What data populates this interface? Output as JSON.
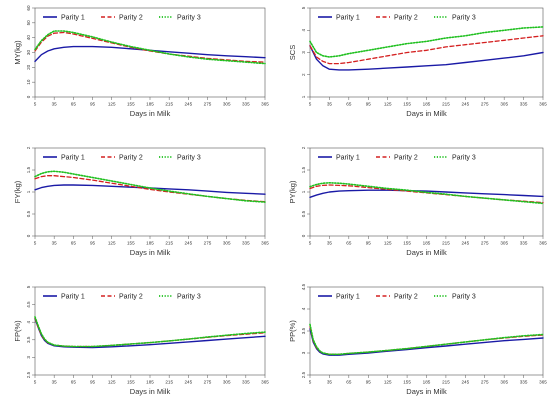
{
  "figure": {
    "x_label": "Days in Milk"
  },
  "legend": {
    "entries": [
      "Parity 1",
      "Parity 2",
      "Parity 3"
    ],
    "colors": [
      "#1a1aa6",
      "#d42020",
      "#20c020"
    ],
    "styles": [
      "solid",
      "dashed",
      "dotted"
    ]
  },
  "chart_data": [
    {
      "type": "line",
      "ylabel": "MY(kg)",
      "xlabel": "Days in Milk",
      "xlim": [
        5,
        365
      ],
      "ylim": [
        0,
        60
      ],
      "yticks": [
        0,
        10,
        20,
        30,
        40,
        50,
        60
      ],
      "xticks": [
        5,
        35,
        65,
        95,
        125,
        155,
        185,
        215,
        245,
        275,
        305,
        335,
        365
      ],
      "legend": "top-left",
      "series": [
        {
          "name": "Parity 1",
          "x": [
            5,
            15,
            25,
            35,
            50,
            65,
            95,
            125,
            155,
            185,
            215,
            245,
            275,
            305,
            335,
            365
          ],
          "y": [
            24,
            28.5,
            31,
            32.5,
            33.5,
            34,
            34,
            33.5,
            32.5,
            31.5,
            30.5,
            29.5,
            28.5,
            27.8,
            27.2,
            26.5
          ]
        },
        {
          "name": "Parity 2",
          "x": [
            5,
            15,
            25,
            35,
            50,
            65,
            95,
            125,
            155,
            185,
            215,
            245,
            275,
            305,
            335,
            365
          ],
          "y": [
            31,
            37,
            41,
            43,
            43.5,
            42.5,
            39.5,
            36.5,
            33.5,
            31,
            29,
            27.5,
            26,
            25,
            24,
            23.5
          ]
        },
        {
          "name": "Parity 3",
          "x": [
            5,
            15,
            25,
            35,
            50,
            65,
            95,
            125,
            155,
            185,
            215,
            245,
            275,
            305,
            335,
            365
          ],
          "y": [
            32,
            38,
            42,
            44.5,
            44.5,
            43.5,
            40.5,
            37,
            34,
            31.5,
            29,
            27,
            25.5,
            24.5,
            23.5,
            22.5
          ]
        }
      ]
    },
    {
      "type": "line",
      "ylabel": "SCS",
      "xlabel": "Days in Milk",
      "xlim": [
        5,
        365
      ],
      "ylim": [
        1,
        5
      ],
      "yticks": [
        1,
        2,
        3,
        4,
        5
      ],
      "xticks": [
        5,
        35,
        65,
        95,
        125,
        155,
        185,
        215,
        245,
        275,
        305,
        335,
        365
      ],
      "legend": "top-left",
      "series": [
        {
          "name": "Parity 1",
          "x": [
            5,
            15,
            25,
            35,
            50,
            65,
            95,
            125,
            155,
            185,
            215,
            245,
            275,
            305,
            335,
            365
          ],
          "y": [
            3.3,
            2.7,
            2.4,
            2.25,
            2.22,
            2.22,
            2.25,
            2.3,
            2.35,
            2.4,
            2.45,
            2.55,
            2.65,
            2.75,
            2.85,
            3.0
          ]
        },
        {
          "name": "Parity 2",
          "x": [
            5,
            15,
            25,
            35,
            50,
            65,
            95,
            125,
            155,
            185,
            215,
            245,
            275,
            305,
            335,
            365
          ],
          "y": [
            3.3,
            2.8,
            2.6,
            2.5,
            2.5,
            2.55,
            2.7,
            2.85,
            3.0,
            3.1,
            3.25,
            3.35,
            3.45,
            3.55,
            3.65,
            3.75
          ]
        },
        {
          "name": "Parity 3",
          "x": [
            5,
            15,
            25,
            35,
            50,
            65,
            95,
            125,
            155,
            185,
            215,
            245,
            275,
            305,
            335,
            365
          ],
          "y": [
            3.5,
            3.0,
            2.85,
            2.8,
            2.85,
            2.95,
            3.1,
            3.25,
            3.4,
            3.5,
            3.65,
            3.75,
            3.9,
            4.0,
            4.1,
            4.15
          ]
        }
      ]
    },
    {
      "type": "line",
      "ylabel": "FY(kg)",
      "xlabel": "Days in Milk",
      "xlim": [
        5,
        365
      ],
      "ylim": [
        0,
        2.0
      ],
      "yticks": [
        0,
        0.5,
        1.0,
        1.5,
        2.0
      ],
      "xticks": [
        5,
        35,
        65,
        95,
        125,
        155,
        185,
        215,
        245,
        275,
        305,
        335,
        365
      ],
      "legend": "top-left",
      "series": [
        {
          "name": "Parity 1",
          "x": [
            5,
            15,
            25,
            35,
            50,
            65,
            95,
            125,
            155,
            185,
            215,
            245,
            275,
            305,
            335,
            365
          ],
          "y": [
            1.05,
            1.1,
            1.13,
            1.15,
            1.16,
            1.16,
            1.15,
            1.13,
            1.11,
            1.09,
            1.07,
            1.05,
            1.02,
            0.99,
            0.97,
            0.95
          ]
        },
        {
          "name": "Parity 2",
          "x": [
            5,
            15,
            25,
            35,
            50,
            65,
            95,
            125,
            155,
            185,
            215,
            245,
            275,
            305,
            335,
            365
          ],
          "y": [
            1.3,
            1.35,
            1.37,
            1.37,
            1.35,
            1.33,
            1.27,
            1.2,
            1.13,
            1.06,
            1.0,
            0.95,
            0.9,
            0.85,
            0.81,
            0.78
          ]
        },
        {
          "name": "Parity 3",
          "x": [
            5,
            15,
            25,
            35,
            50,
            65,
            95,
            125,
            155,
            185,
            215,
            245,
            275,
            305,
            335,
            365
          ],
          "y": [
            1.35,
            1.42,
            1.46,
            1.47,
            1.45,
            1.41,
            1.33,
            1.25,
            1.17,
            1.09,
            1.02,
            0.96,
            0.9,
            0.85,
            0.8,
            0.77
          ]
        }
      ]
    },
    {
      "type": "line",
      "ylabel": "PY(kg)",
      "xlabel": "Days in Milk",
      "xlim": [
        5,
        365
      ],
      "ylim": [
        0,
        2.0
      ],
      "yticks": [
        0,
        0.5,
        1.0,
        1.5,
        2.0
      ],
      "xticks": [
        5,
        35,
        65,
        95,
        125,
        155,
        185,
        215,
        245,
        275,
        305,
        335,
        365
      ],
      "legend": "top-left",
      "series": [
        {
          "name": "Parity 1",
          "x": [
            5,
            15,
            25,
            35,
            50,
            65,
            95,
            125,
            155,
            185,
            215,
            245,
            275,
            305,
            335,
            365
          ],
          "y": [
            0.88,
            0.93,
            0.97,
            1.0,
            1.02,
            1.03,
            1.04,
            1.04,
            1.03,
            1.02,
            1.0,
            0.98,
            0.96,
            0.94,
            0.92,
            0.9
          ]
        },
        {
          "name": "Parity 2",
          "x": [
            5,
            15,
            25,
            35,
            50,
            65,
            95,
            125,
            155,
            185,
            215,
            245,
            275,
            305,
            335,
            365
          ],
          "y": [
            1.08,
            1.13,
            1.15,
            1.16,
            1.15,
            1.14,
            1.1,
            1.06,
            1.02,
            0.98,
            0.94,
            0.9,
            0.86,
            0.82,
            0.79,
            0.76
          ]
        },
        {
          "name": "Parity 3",
          "x": [
            5,
            15,
            25,
            35,
            50,
            65,
            95,
            125,
            155,
            185,
            215,
            245,
            275,
            305,
            335,
            365
          ],
          "y": [
            1.12,
            1.17,
            1.2,
            1.21,
            1.2,
            1.18,
            1.13,
            1.08,
            1.04,
            0.99,
            0.95,
            0.9,
            0.86,
            0.82,
            0.78,
            0.74
          ]
        }
      ]
    },
    {
      "type": "line",
      "ylabel": "FP(%)",
      "xlabel": "Days in Milk",
      "xlim": [
        5,
        365
      ],
      "ylim": [
        2.5,
        5.0
      ],
      "yticks": [
        2.5,
        3.0,
        3.5,
        4.0,
        4.5,
        5.0
      ],
      "xticks": [
        5,
        35,
        65,
        95,
        125,
        155,
        185,
        215,
        245,
        275,
        305,
        335,
        365
      ],
      "legend": "top-left",
      "series": [
        {
          "name": "Parity 1",
          "x": [
            5,
            10,
            15,
            20,
            25,
            35,
            50,
            65,
            95,
            125,
            155,
            185,
            215,
            245,
            275,
            305,
            335,
            365
          ],
          "y": [
            4.1,
            3.85,
            3.62,
            3.48,
            3.4,
            3.33,
            3.3,
            3.29,
            3.28,
            3.3,
            3.33,
            3.36,
            3.4,
            3.44,
            3.48,
            3.52,
            3.56,
            3.6
          ]
        },
        {
          "name": "Parity 2",
          "x": [
            5,
            10,
            15,
            20,
            25,
            35,
            50,
            65,
            95,
            125,
            155,
            185,
            215,
            245,
            275,
            305,
            335,
            365
          ],
          "y": [
            4.12,
            3.86,
            3.64,
            3.5,
            3.42,
            3.35,
            3.32,
            3.31,
            3.31,
            3.34,
            3.38,
            3.42,
            3.47,
            3.52,
            3.57,
            3.62,
            3.66,
            3.7
          ]
        },
        {
          "name": "Parity 3",
          "x": [
            5,
            10,
            15,
            20,
            25,
            35,
            50,
            65,
            95,
            125,
            155,
            185,
            215,
            245,
            275,
            305,
            335,
            365
          ],
          "y": [
            4.15,
            3.9,
            3.67,
            3.52,
            3.43,
            3.35,
            3.32,
            3.31,
            3.31,
            3.34,
            3.38,
            3.42,
            3.47,
            3.52,
            3.58,
            3.63,
            3.68,
            3.72
          ]
        }
      ]
    },
    {
      "type": "line",
      "ylabel": "PP(%)",
      "xlabel": "Days in Milk",
      "xlim": [
        5,
        365
      ],
      "ylim": [
        2.5,
        4.5
      ],
      "yticks": [
        2.5,
        3.0,
        3.5,
        4.0,
        4.5
      ],
      "xticks": [
        5,
        35,
        65,
        95,
        125,
        155,
        185,
        215,
        245,
        275,
        305,
        335,
        365
      ],
      "legend": "top-left",
      "series": [
        {
          "name": "Parity 1",
          "x": [
            5,
            10,
            15,
            20,
            25,
            35,
            50,
            65,
            95,
            125,
            155,
            185,
            215,
            245,
            275,
            305,
            335,
            365
          ],
          "y": [
            3.55,
            3.25,
            3.1,
            3.02,
            2.98,
            2.95,
            2.95,
            2.97,
            3.0,
            3.04,
            3.08,
            3.12,
            3.16,
            3.2,
            3.24,
            3.28,
            3.31,
            3.34
          ]
        },
        {
          "name": "Parity 2",
          "x": [
            5,
            10,
            15,
            20,
            25,
            35,
            50,
            65,
            95,
            125,
            155,
            185,
            215,
            245,
            275,
            305,
            335,
            365
          ],
          "y": [
            3.6,
            3.28,
            3.12,
            3.04,
            3.0,
            2.97,
            2.97,
            2.99,
            3.02,
            3.06,
            3.1,
            3.15,
            3.2,
            3.25,
            3.3,
            3.34,
            3.38,
            3.41
          ]
        },
        {
          "name": "Parity 3",
          "x": [
            5,
            10,
            15,
            20,
            25,
            35,
            50,
            65,
            95,
            125,
            155,
            185,
            215,
            245,
            275,
            305,
            335,
            365
          ],
          "y": [
            3.65,
            3.3,
            3.14,
            3.05,
            3.0,
            2.97,
            2.97,
            2.99,
            3.02,
            3.06,
            3.1,
            3.15,
            3.2,
            3.25,
            3.3,
            3.35,
            3.39,
            3.42
          ]
        }
      ]
    }
  ]
}
